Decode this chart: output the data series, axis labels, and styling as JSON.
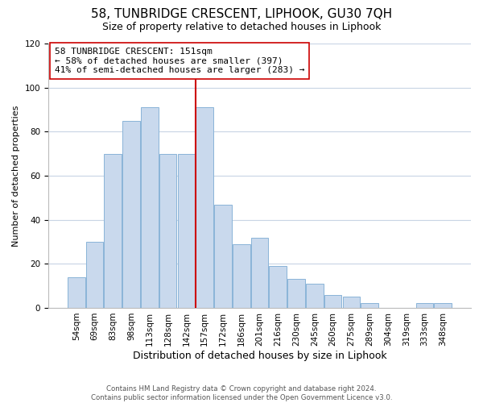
{
  "title": "58, TUNBRIDGE CRESCENT, LIPHOOK, GU30 7QH",
  "subtitle": "Size of property relative to detached houses in Liphook",
  "xlabel": "Distribution of detached houses by size in Liphook",
  "ylabel": "Number of detached properties",
  "footer_line1": "Contains HM Land Registry data © Crown copyright and database right 2024.",
  "footer_line2": "Contains public sector information licensed under the Open Government Licence v3.0.",
  "bar_labels": [
    "54sqm",
    "69sqm",
    "83sqm",
    "98sqm",
    "113sqm",
    "128sqm",
    "142sqm",
    "157sqm",
    "172sqm",
    "186sqm",
    "201sqm",
    "216sqm",
    "230sqm",
    "245sqm",
    "260sqm",
    "275sqm",
    "289sqm",
    "304sqm",
    "319sqm",
    "333sqm",
    "348sqm"
  ],
  "bar_values": [
    14,
    30,
    70,
    85,
    91,
    70,
    70,
    91,
    47,
    29,
    32,
    19,
    13,
    11,
    6,
    5,
    2,
    0,
    0,
    2,
    2
  ],
  "bar_color": "#c9d9ed",
  "bar_edge_color": "#8ab4d8",
  "vline_x_index": 6.5,
  "vline_color": "#cc0000",
  "annotation_line1": "58 TUNBRIDGE CRESCENT: 151sqm",
  "annotation_line2": "← 58% of detached houses are smaller (397)",
  "annotation_line3": "41% of semi-detached houses are larger (283) →",
  "ylim": [
    0,
    120
  ],
  "yticks": [
    0,
    20,
    40,
    60,
    80,
    100,
    120
  ],
  "background_color": "#ffffff",
  "grid_color": "#c8d4e4",
  "title_fontsize": 11,
  "subtitle_fontsize": 9,
  "xlabel_fontsize": 9,
  "ylabel_fontsize": 8,
  "tick_fontsize": 7.5,
  "annotation_fontsize": 8
}
